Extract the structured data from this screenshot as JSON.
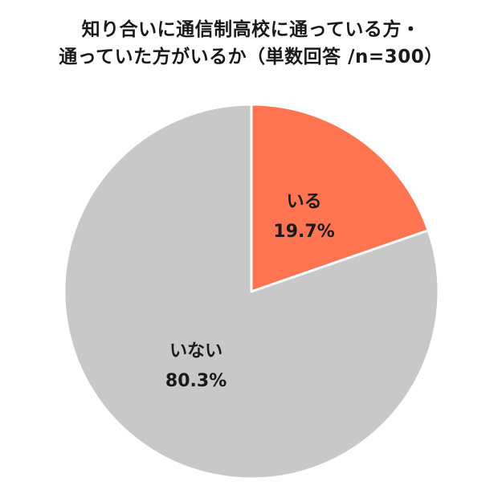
{
  "chart_data": {
    "type": "pie",
    "title_lines": [
      "知り合いに通信制高校に通っている方・",
      "通っていた方がいるか（単数回答 /n=300）"
    ],
    "categories": [
      "いる",
      "いない"
    ],
    "values": [
      19.7,
      80.3
    ],
    "value_labels": [
      "19.7%",
      "80.3%"
    ],
    "colors": [
      "#ff7552",
      "#c8c8c8"
    ],
    "start_angle": "12 o'clock",
    "direction": "clockwise",
    "legend": "none"
  }
}
